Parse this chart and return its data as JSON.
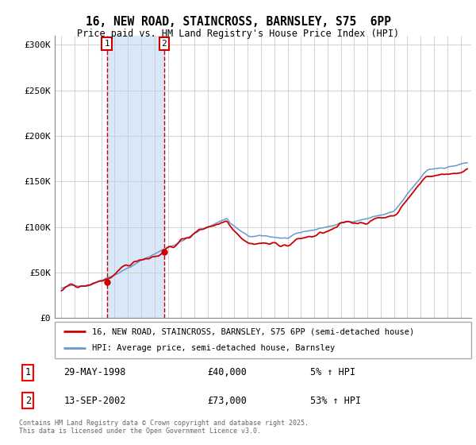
{
  "title1": "16, NEW ROAD, STAINCROSS, BARNSLEY, S75  6PP",
  "title2": "Price paid vs. HM Land Registry's House Price Index (HPI)",
  "legend1": "16, NEW ROAD, STAINCROSS, BARNSLEY, S75 6PP (semi-detached house)",
  "legend2": "HPI: Average price, semi-detached house, Barnsley",
  "sale1_date": "29-MAY-1998",
  "sale1_price": "£40,000",
  "sale1_hpi": "5% ↑ HPI",
  "sale1_year": 1998.41,
  "sale1_value": 40000,
  "sale2_date": "13-SEP-2002",
  "sale2_price": "£73,000",
  "sale2_hpi": "53% ↑ HPI",
  "sale2_year": 2002.71,
  "sale2_value": 73000,
  "hpi_color": "#6699cc",
  "price_color": "#cc0000",
  "shade_color": "#d8e8f8",
  "marker_color": "#cc0000",
  "footer": "Contains HM Land Registry data © Crown copyright and database right 2025.\nThis data is licensed under the Open Government Licence v3.0.",
  "ylim": [
    0,
    310000
  ],
  "yticks": [
    0,
    50000,
    100000,
    150000,
    200000,
    250000,
    300000
  ],
  "ytick_labels": [
    "£0",
    "£50K",
    "£100K",
    "£150K",
    "£200K",
    "£250K",
    "£300K"
  ],
  "xlim_left": 1994.5,
  "xlim_right": 2025.8
}
